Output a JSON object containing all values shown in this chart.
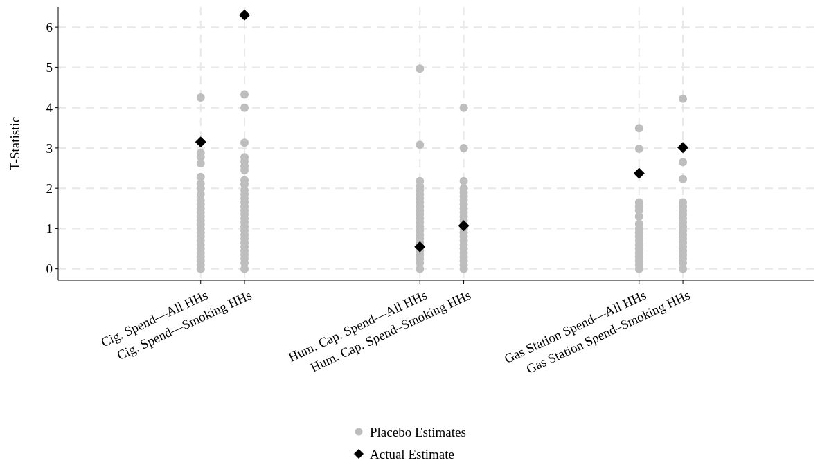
{
  "chart_data": {
    "type": "scatter",
    "ylabel": "T-Statistic",
    "ylim": [
      -0.28,
      6.5
    ],
    "yticks": [
      0,
      1,
      2,
      3,
      4,
      5,
      6
    ],
    "categories": [
      null,
      null,
      null,
      "Cig. Spend—All HHs",
      "Cig. Spend—Smoking HHs",
      null,
      null,
      null,
      "Hum. Cap. Spend—All HHs",
      "Hum. Cap. Spend–Smoking HHs",
      null,
      null,
      null,
      "Gas Station Spend—All HHs",
      "Gas Station Spend–Smoking HHs",
      null,
      null,
      null
    ],
    "grid": true,
    "legend": "bottom",
    "series": [
      {
        "name": "Placebo Estimates",
        "color": "#bebebe",
        "marker": "circle",
        "x": [
          "Cig. Spend—All HHs",
          "Cig. Spend—All HHs",
          "Cig. Spend—All HHs",
          "Cig. Spend—All HHs",
          "Cig. Spend—All HHs",
          "Cig. Spend—All HHs",
          "Cig. Spend—All HHs",
          "Cig. Spend—All HHs",
          "Cig. Spend—All HHs",
          "Cig. Spend—All HHs",
          "Cig. Spend—All HHs",
          "Cig. Spend—All HHs",
          "Cig. Spend—All HHs",
          "Cig. Spend—All HHs",
          "Cig. Spend—All HHs",
          "Cig. Spend—All HHs",
          "Cig. Spend—All HHs",
          "Cig. Spend—All HHs",
          "Cig. Spend—All HHs",
          "Cig. Spend—All HHs",
          "Cig. Spend—All HHs",
          "Cig. Spend—All HHs",
          "Cig. Spend—All HHs",
          "Cig. Spend—All HHs",
          "Cig. Spend—All HHs",
          "Cig. Spend—All HHs",
          "Cig. Spend—Smoking HHs",
          "Cig. Spend—Smoking HHs",
          "Cig. Spend—Smoking HHs",
          "Cig. Spend—Smoking HHs",
          "Cig. Spend—Smoking HHs",
          "Cig. Spend—Smoking HHs",
          "Cig. Spend—Smoking HHs",
          "Cig. Spend—Smoking HHs",
          "Cig. Spend—Smoking HHs",
          "Cig. Spend—Smoking HHs",
          "Cig. Spend—Smoking HHs",
          "Cig. Spend—Smoking HHs",
          "Cig. Spend—Smoking HHs",
          "Cig. Spend—Smoking HHs",
          "Cig. Spend—Smoking HHs",
          "Cig. Spend—Smoking HHs",
          "Cig. Spend—Smoking HHs",
          "Cig. Spend—Smoking HHs",
          "Cig. Spend—Smoking HHs",
          "Cig. Spend—Smoking HHs",
          "Cig. Spend—Smoking HHs",
          "Cig. Spend—Smoking HHs",
          "Cig. Spend—Smoking HHs",
          "Cig. Spend—Smoking HHs",
          "Cig. Spend—Smoking HHs",
          "Cig. Spend—Smoking HHs",
          "Cig. Spend—Smoking HHs",
          "Cig. Spend—Smoking HHs",
          "Cig. Spend—Smoking HHs",
          "Hum. Cap. Spend—All HHs",
          "Hum. Cap. Spend—All HHs",
          "Hum. Cap. Spend—All HHs",
          "Hum. Cap. Spend—All HHs",
          "Hum. Cap. Spend—All HHs",
          "Hum. Cap. Spend—All HHs",
          "Hum. Cap. Spend—All HHs",
          "Hum. Cap. Spend—All HHs",
          "Hum. Cap. Spend—All HHs",
          "Hum. Cap. Spend—All HHs",
          "Hum. Cap. Spend—All HHs",
          "Hum. Cap. Spend—All HHs",
          "Hum. Cap. Spend—All HHs",
          "Hum. Cap. Spend—All HHs",
          "Hum. Cap. Spend—All HHs",
          "Hum. Cap. Spend—All HHs",
          "Hum. Cap. Spend—All HHs",
          "Hum. Cap. Spend—All HHs",
          "Hum. Cap. Spend—All HHs",
          "Hum. Cap. Spend—All HHs",
          "Hum. Cap. Spend—All HHs",
          "Hum. Cap. Spend—All HHs",
          "Hum. Cap. Spend—All HHs",
          "Hum. Cap. Spend–Smoking HHs",
          "Hum. Cap. Spend–Smoking HHs",
          "Hum. Cap. Spend–Smoking HHs",
          "Hum. Cap. Spend–Smoking HHs",
          "Hum. Cap. Spend–Smoking HHs",
          "Hum. Cap. Spend–Smoking HHs",
          "Hum. Cap. Spend–Smoking HHs",
          "Hum. Cap. Spend–Smoking HHs",
          "Hum. Cap. Spend–Smoking HHs",
          "Hum. Cap. Spend–Smoking HHs",
          "Hum. Cap. Spend–Smoking HHs",
          "Hum. Cap. Spend–Smoking HHs",
          "Hum. Cap. Spend–Smoking HHs",
          "Hum. Cap. Spend–Smoking HHs",
          "Hum. Cap. Spend–Smoking HHs",
          "Hum. Cap. Spend–Smoking HHs",
          "Hum. Cap. Spend–Smoking HHs",
          "Hum. Cap. Spend–Smoking HHs",
          "Hum. Cap. Spend–Smoking HHs",
          "Hum. Cap. Spend–Smoking HHs",
          "Hum. Cap. Spend–Smoking HHs",
          "Hum. Cap. Spend–Smoking HHs",
          "Hum. Cap. Spend–Smoking HHs",
          "Gas Station Spend—All HHs",
          "Gas Station Spend—All HHs",
          "Gas Station Spend—All HHs",
          "Gas Station Spend—All HHs",
          "Gas Station Spend—All HHs",
          "Gas Station Spend—All HHs",
          "Gas Station Spend—All HHs",
          "Gas Station Spend—All HHs",
          "Gas Station Spend—All HHs",
          "Gas Station Spend—All HHs",
          "Gas Station Spend—All HHs",
          "Gas Station Spend—All HHs",
          "Gas Station Spend—All HHs",
          "Gas Station Spend—All HHs",
          "Gas Station Spend—All HHs",
          "Gas Station Spend—All HHs",
          "Gas Station Spend—All HHs",
          "Gas Station Spend—All HHs",
          "Gas Station Spend–Smoking HHs",
          "Gas Station Spend–Smoking HHs",
          "Gas Station Spend–Smoking HHs",
          "Gas Station Spend–Smoking HHs",
          "Gas Station Spend–Smoking HHs",
          "Gas Station Spend–Smoking HHs",
          "Gas Station Spend–Smoking HHs",
          "Gas Station Spend–Smoking HHs",
          "Gas Station Spend–Smoking HHs",
          "Gas Station Spend–Smoking HHs",
          "Gas Station Spend–Smoking HHs",
          "Gas Station Spend–Smoking HHs",
          "Gas Station Spend–Smoking HHs",
          "Gas Station Spend–Smoking HHs",
          "Gas Station Spend–Smoking HHs",
          "Gas Station Spend–Smoking HHs",
          "Gas Station Spend–Smoking HHs",
          "Gas Station Spend–Smoking HHs",
          "Gas Station Spend–Smoking HHs",
          "Gas Station Spend–Smoking HHs"
        ],
        "values": [
          4.25,
          2.88,
          2.78,
          2.62,
          2.28,
          2.12,
          2.0,
          1.85,
          1.7,
          1.6,
          1.5,
          1.4,
          1.3,
          1.2,
          1.1,
          1.0,
          0.9,
          0.8,
          0.7,
          0.6,
          0.5,
          0.4,
          0.3,
          0.2,
          0.1,
          0.0,
          4.33,
          4.0,
          3.13,
          2.77,
          2.67,
          2.55,
          2.45,
          2.2,
          2.1,
          1.95,
          1.85,
          1.75,
          1.65,
          1.55,
          1.45,
          1.35,
          1.25,
          1.15,
          1.05,
          0.95,
          0.85,
          0.75,
          0.65,
          0.55,
          0.45,
          0.35,
          0.25,
          0.15,
          0.0,
          4.97,
          3.08,
          2.18,
          2.05,
          1.95,
          1.85,
          1.75,
          1.65,
          1.55,
          1.45,
          1.35,
          1.25,
          1.15,
          1.05,
          0.95,
          0.85,
          0.75,
          0.65,
          0.45,
          0.35,
          0.25,
          0.15,
          0.0,
          4.0,
          3.0,
          2.18,
          2.0,
          1.9,
          1.8,
          1.7,
          1.6,
          1.5,
          1.4,
          1.3,
          1.2,
          1.0,
          0.9,
          0.8,
          0.7,
          0.6,
          0.5,
          0.4,
          0.3,
          0.2,
          0.1,
          0.0,
          3.49,
          2.98,
          1.65,
          1.55,
          1.45,
          1.3,
          1.12,
          1.0,
          0.9,
          0.8,
          0.7,
          0.6,
          0.5,
          0.4,
          0.3,
          0.2,
          0.1,
          0.0,
          4.22,
          2.65,
          2.23,
          1.65,
          1.55,
          1.45,
          1.35,
          1.25,
          1.15,
          1.05,
          0.95,
          0.85,
          0.75,
          0.65,
          0.55,
          0.45,
          0.35,
          0.25,
          0.15,
          0.0
        ]
      },
      {
        "name": "Actual Estimate",
        "color": "#000000",
        "marker": "diamond",
        "x": [
          "Cig. Spend—All HHs",
          "Cig. Spend—Smoking HHs",
          "Hum. Cap. Spend—All HHs",
          "Hum. Cap. Spend–Smoking HHs",
          "Gas Station Spend—All HHs",
          "Gas Station Spend–Smoking HHs"
        ],
        "values": [
          3.15,
          6.3,
          0.55,
          1.07,
          2.37,
          3.01
        ]
      }
    ]
  }
}
